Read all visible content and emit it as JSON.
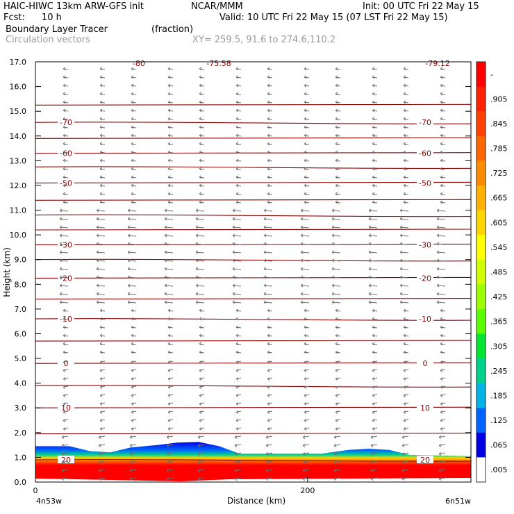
{
  "header": {
    "model": "HAIC-HIWC 13km ARW-GFS init",
    "org": "NCAR/MMM",
    "init": "Init: 00 UTC Fri 22 May 15",
    "fcst_label": "Fcst:",
    "fcst_value": "10 h",
    "valid": "Valid: 10 UTC Fri 22 May 15 (07 LST Fri 22 May 15)",
    "field1": "Boundary Layer Tracer",
    "field1_units": "(fraction)",
    "field2": "Circulation vectors",
    "xy_range": "XY= 259.5, 91.6 to 274.6,110.2"
  },
  "chart_data": {
    "type": "heatmap",
    "ylabel": "Height (km)",
    "xlabel": "Distance (km)",
    "ylim": [
      0,
      17
    ],
    "y_ticks": [
      "0.0",
      "1.0",
      "2.0",
      "3.0",
      "4.0",
      "5.0",
      "6.0",
      "7.0",
      "8.0",
      "9.0",
      "10.0",
      "11.0",
      "12.0",
      "13.0",
      "14.0",
      "15.0",
      "16.0",
      "17.0"
    ],
    "xlim": [
      0,
      320
    ],
    "x_ticks": [
      {
        "value": 0,
        "label": "0"
      },
      {
        "value": 200,
        "label": "200"
      }
    ],
    "x_end_labels": {
      "left": "4n53w",
      "right": "6n51w"
    },
    "tracer_top_km": [
      {
        "x": 0,
        "h": 1.45
      },
      {
        "x": 25,
        "h": 1.45
      },
      {
        "x": 40,
        "h": 1.25
      },
      {
        "x": 55,
        "h": 1.2
      },
      {
        "x": 70,
        "h": 1.4
      },
      {
        "x": 90,
        "h": 1.5
      },
      {
        "x": 105,
        "h": 1.6
      },
      {
        "x": 120,
        "h": 1.62
      },
      {
        "x": 135,
        "h": 1.45
      },
      {
        "x": 150,
        "h": 1.15
      },
      {
        "x": 180,
        "h": 1.15
      },
      {
        "x": 210,
        "h": 1.15
      },
      {
        "x": 230,
        "h": 1.3
      },
      {
        "x": 245,
        "h": 1.35
      },
      {
        "x": 260,
        "h": 1.3
      },
      {
        "x": 275,
        "h": 1.1
      },
      {
        "x": 320,
        "h": 1.05
      }
    ],
    "contours": [
      {
        "km": 0.9,
        "label": "20"
      },
      {
        "km": 1.95,
        "label": ""
      },
      {
        "km": 3.0,
        "label": "10"
      },
      {
        "km": 3.9,
        "label": ""
      },
      {
        "km": 4.8,
        "label": "0"
      },
      {
        "km": 5.7,
        "label": ""
      },
      {
        "km": 6.6,
        "label": "-10"
      },
      {
        "km": 7.4,
        "label": ""
      },
      {
        "km": 8.25,
        "label": "-20"
      },
      {
        "km": 9.0,
        "label": ""
      },
      {
        "km": 9.6,
        "label": "-30"
      },
      {
        "km": 10.2,
        "label": ""
      },
      {
        "km": 10.8,
        "label": ""
      },
      {
        "km": 11.4,
        "label": ""
      },
      {
        "km": 12.1,
        "label": "-50"
      },
      {
        "km": 12.75,
        "label": ""
      },
      {
        "km": 13.3,
        "label": "-60"
      },
      {
        "km": 13.9,
        "label": ""
      },
      {
        "km": 14.55,
        "label": "-70"
      },
      {
        "km": 15.25,
        "label": ""
      }
    ],
    "top_labels": [
      "-80",
      "-75.58",
      "-79.12"
    ],
    "colorbar": {
      "labels": [
        "-",
        ".905",
        ".845",
        ".785",
        ".725",
        ".665",
        ".605",
        ".545",
        ".485",
        ".425",
        ".365",
        ".305",
        ".245",
        ".185",
        ".125",
        ".065",
        ".005"
      ],
      "colors": [
        "#ff0000",
        "#ff2200",
        "#ff4000",
        "#ff6600",
        "#ff8c00",
        "#ffb000",
        "#ffd400",
        "#ffff00",
        "#d2ff00",
        "#9cff00",
        "#5aff00",
        "#00e632",
        "#00d28c",
        "#00b4e6",
        "#0064ff",
        "#0000e6",
        "#ffffff"
      ]
    }
  }
}
